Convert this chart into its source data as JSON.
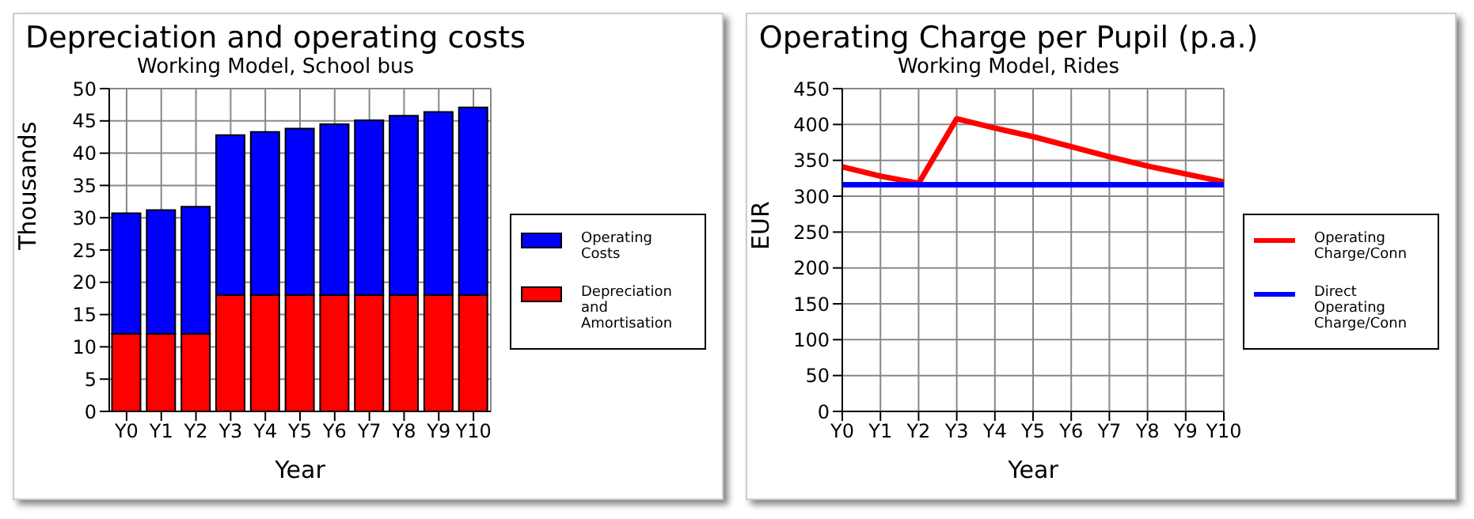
{
  "chart_data": [
    {
      "type": "bar",
      "title": "Depreciation and operating costs",
      "subtitle": "Working Model, School bus",
      "xlabel": "Year",
      "ylabel": "Thousands",
      "categories": [
        "Y0",
        "Y1",
        "Y2",
        "Y3",
        "Y4",
        "Y5",
        "Y6",
        "Y7",
        "Y8",
        "Y9",
        "Y10"
      ],
      "stacked": true,
      "ylim": [
        0,
        50
      ],
      "yticks": [
        0,
        5,
        10,
        15,
        20,
        25,
        30,
        35,
        40,
        45,
        50
      ],
      "grid": true,
      "legend": "right",
      "series": [
        {
          "name": "Depreciation and Amortisation",
          "color": "#ff0000",
          "values": [
            12,
            12,
            12,
            18,
            18,
            18,
            18,
            18,
            18,
            18,
            18
          ]
        },
        {
          "name": "Operating Costs",
          "color": "#0000ff",
          "values": [
            18.7,
            19.2,
            19.7,
            24.8,
            25.3,
            25.8,
            26.5,
            27.1,
            27.8,
            28.4,
            29.1
          ]
        }
      ]
    },
    {
      "type": "line",
      "title": "Operating Charge per Pupil (p.a.)",
      "subtitle": "Working Model, Rides",
      "xlabel": "Year",
      "ylabel": "EUR",
      "categories": [
        "Y0",
        "Y1",
        "Y2",
        "Y3",
        "Y4",
        "Y5",
        "Y6",
        "Y7",
        "Y8",
        "Y9",
        "Y10"
      ],
      "ylim": [
        0,
        450
      ],
      "yticks": [
        0,
        50,
        100,
        150,
        200,
        250,
        300,
        350,
        400,
        450
      ],
      "grid": true,
      "legend": "right",
      "marker": "none",
      "line_style": "solid",
      "series": [
        {
          "name": "Operating Charge/Conn",
          "color": "#ff0000",
          "values": [
            341,
            328,
            318,
            408,
            395,
            383,
            369,
            355,
            342,
            331,
            320
          ]
        },
        {
          "name": "Direct Operating Charge/Conn",
          "color": "#0000ff",
          "values": [
            316,
            316,
            316,
            316,
            316,
            316,
            316,
            316,
            316,
            316,
            316
          ]
        }
      ]
    }
  ]
}
